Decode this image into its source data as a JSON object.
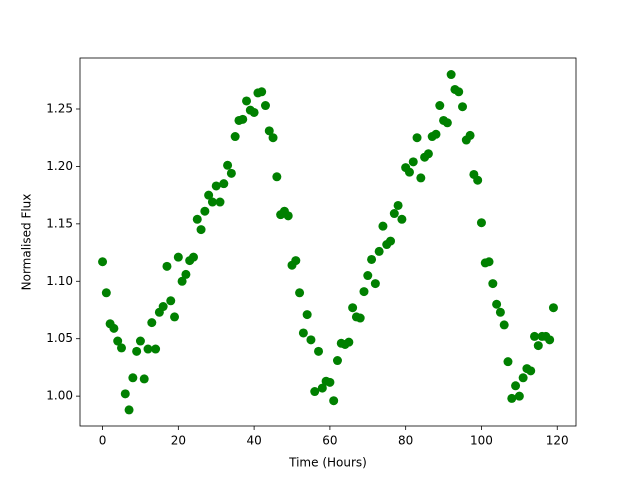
{
  "chart_data": {
    "type": "scatter",
    "x_label": "Time (Hours)",
    "y_label": "Normalised Flux",
    "color": "#008000",
    "x": [
      0,
      1,
      2,
      3,
      4,
      5,
      6,
      7,
      8,
      9,
      10,
      11,
      12,
      13,
      14,
      15,
      16,
      17,
      18,
      19,
      20,
      21,
      22,
      23,
      24,
      25,
      26,
      27,
      28,
      29,
      30,
      31,
      32,
      33,
      34,
      35,
      36,
      37,
      38,
      39,
      40,
      41,
      42,
      43,
      44,
      45,
      46,
      47,
      48,
      49,
      50,
      51,
      52,
      53,
      54,
      55,
      56,
      57,
      58,
      59,
      60,
      61,
      62,
      63,
      64,
      65,
      66,
      67,
      68,
      69,
      70,
      71,
      72,
      73,
      74,
      75,
      76,
      77,
      78,
      79,
      80,
      81,
      82,
      83,
      84,
      85,
      86,
      87,
      88,
      89,
      90,
      91,
      92,
      93,
      94,
      95,
      96,
      97,
      98,
      99,
      100,
      101,
      102,
      103,
      104,
      105,
      106,
      107,
      108,
      109,
      110,
      111,
      112,
      113,
      114,
      115,
      116,
      117,
      118,
      119
    ],
    "values": [
      1.117,
      1.09,
      1.063,
      1.059,
      1.048,
      1.042,
      1.002,
      0.988,
      1.016,
      1.039,
      1.048,
      1.015,
      1.041,
      1.064,
      1.041,
      1.073,
      1.078,
      1.113,
      1.083,
      1.069,
      1.121,
      1.1,
      1.106,
      1.118,
      1.121,
      1.154,
      1.145,
      1.161,
      1.175,
      1.169,
      1.183,
      1.169,
      1.185,
      1.201,
      1.194,
      1.226,
      1.24,
      1.241,
      1.257,
      1.249,
      1.247,
      1.264,
      1.265,
      1.253,
      1.231,
      1.225,
      1.191,
      1.158,
      1.161,
      1.157,
      1.114,
      1.118,
      1.09,
      1.055,
      1.071,
      1.049,
      1.004,
      1.039,
      1.007,
      1.013,
      1.012,
      0.996,
      1.031,
      1.046,
      1.045,
      1.047,
      1.077,
      1.069,
      1.068,
      1.091,
      1.105,
      1.119,
      1.098,
      1.126,
      1.148,
      1.132,
      1.135,
      1.159,
      1.166,
      1.154,
      1.199,
      1.195,
      1.204,
      1.225,
      1.19,
      1.208,
      1.211,
      1.226,
      1.228,
      1.253,
      1.24,
      1.238,
      1.28,
      1.267,
      1.265,
      1.252,
      1.223,
      1.227,
      1.193,
      1.188,
      1.151,
      1.116,
      1.117,
      1.098,
      1.08,
      1.073,
      1.062,
      1.03,
      0.998,
      1.009,
      1.0,
      1.016,
      1.024,
      1.022,
      1.052,
      1.044,
      1.052,
      1.052,
      1.049,
      1.077
    ],
    "xlim": [
      -5.95,
      124.95
    ],
    "ylim": [
      0.974,
      1.2944
    ],
    "xticks": [
      0,
      20,
      40,
      60,
      80,
      100,
      120
    ],
    "yticks": [
      {
        "value": 1.0,
        "label": "1.00"
      },
      {
        "value": 1.05,
        "label": "1.05"
      },
      {
        "value": 1.1,
        "label": "1.10"
      },
      {
        "value": 1.15,
        "label": "1.15"
      },
      {
        "value": 1.2,
        "label": "1.20"
      },
      {
        "value": 1.25,
        "label": "1.25"
      }
    ]
  }
}
